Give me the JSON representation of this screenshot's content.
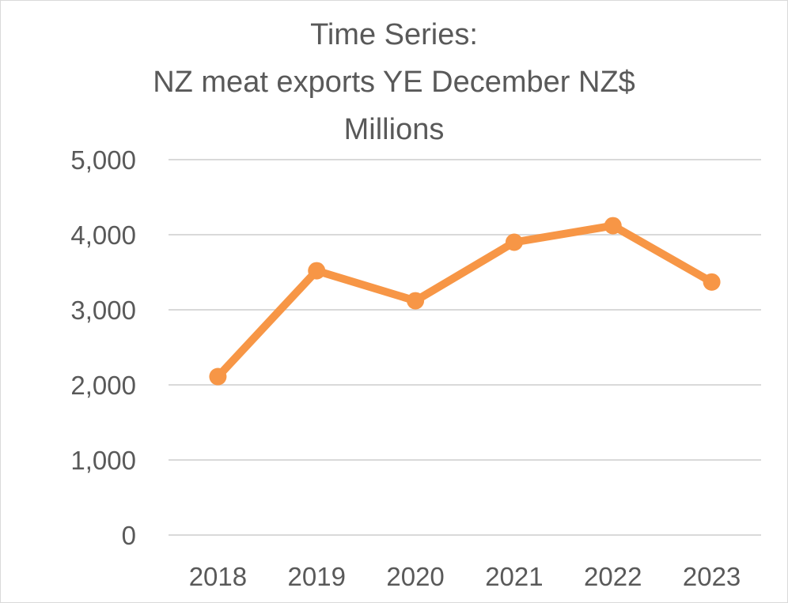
{
  "chart_data": {
    "type": "line",
    "title_lines": [
      "Time Series:",
      "NZ meat exports YE December NZ$",
      "Millions"
    ],
    "xlabel": "",
    "ylabel": "",
    "categories": [
      "2018",
      "2019",
      "2020",
      "2021",
      "2022",
      "2023"
    ],
    "series": [
      {
        "values": [
          2110,
          3520,
          3120,
          3900,
          4120,
          3370
        ]
      }
    ],
    "ylim": [
      0,
      5000
    ],
    "yticks": [
      0,
      1000,
      2000,
      3000,
      4000,
      5000
    ],
    "ytick_labels": [
      "0",
      "1,000",
      "2,000",
      "3,000",
      "4,000",
      "5,000"
    ],
    "grid": true,
    "legend": "none",
    "colors": {
      "series": "#f79646",
      "grid": "#d9d9d9",
      "text": "#595959",
      "border": "#d9d9d9"
    }
  }
}
